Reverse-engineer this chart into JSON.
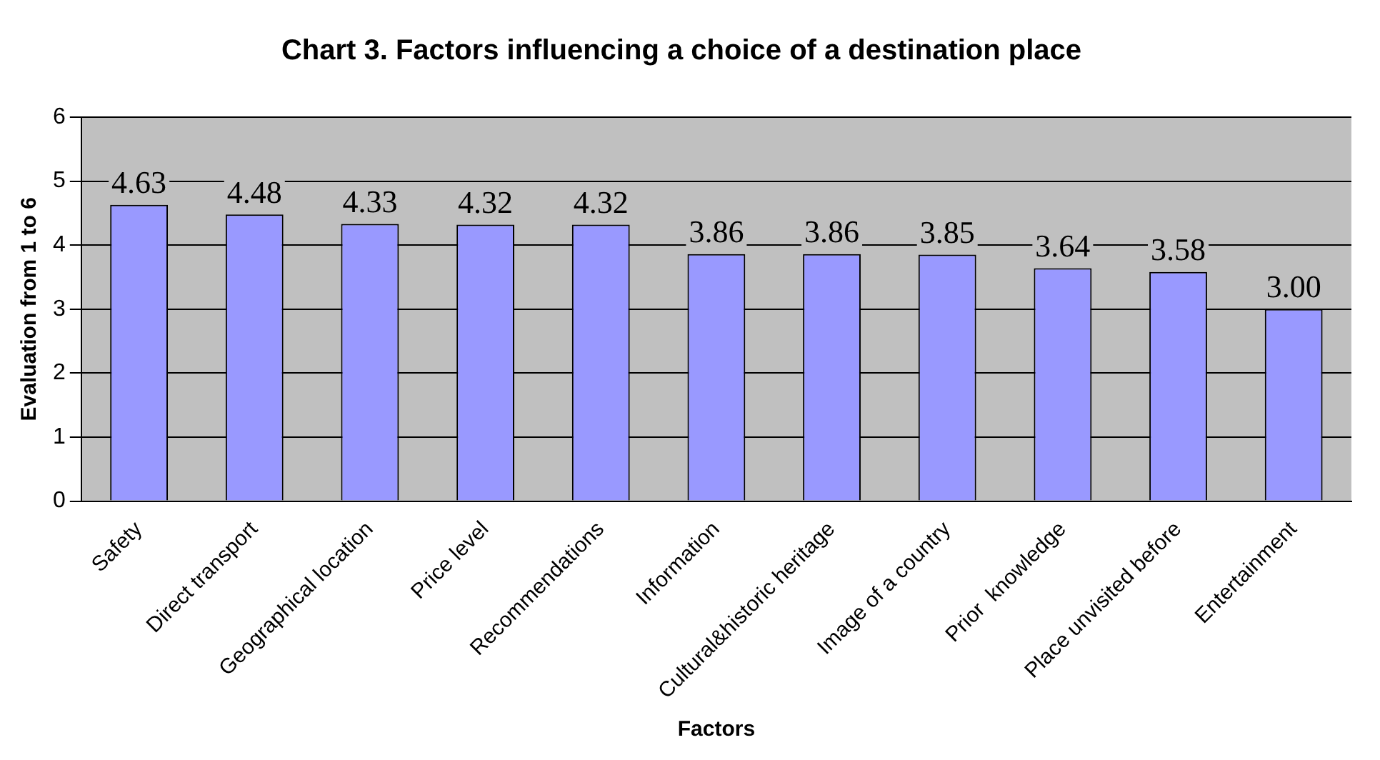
{
  "chart_data": {
    "type": "bar",
    "title": "Chart 3. Factors influencing a choice of a destination place",
    "xlabel": "Factors",
    "ylabel": "Evaluation from 1 to 6",
    "categories": [
      "Safety",
      "Direct transport",
      "Geographical location",
      "Price level",
      "Recommendations",
      "Information",
      "Cultural&historic heritage",
      "Image of a country",
      "Prior  knowledge",
      "Place unvisited before",
      "Entertainment"
    ],
    "values": [
      4.63,
      4.48,
      4.33,
      4.32,
      4.32,
      3.86,
      3.86,
      3.85,
      3.64,
      3.58,
      3.0
    ],
    "value_labels": [
      "4.63",
      "4.48",
      "4.33",
      "4.32",
      "4.32",
      "3.86",
      "3.86",
      "3.85",
      "3.64",
      "3.58",
      "3.00"
    ],
    "color": "#9999ff",
    "ylim": [
      0,
      6
    ],
    "yticks": [
      0,
      1,
      2,
      3,
      4,
      5,
      6
    ],
    "grid": "y",
    "legend": false
  }
}
